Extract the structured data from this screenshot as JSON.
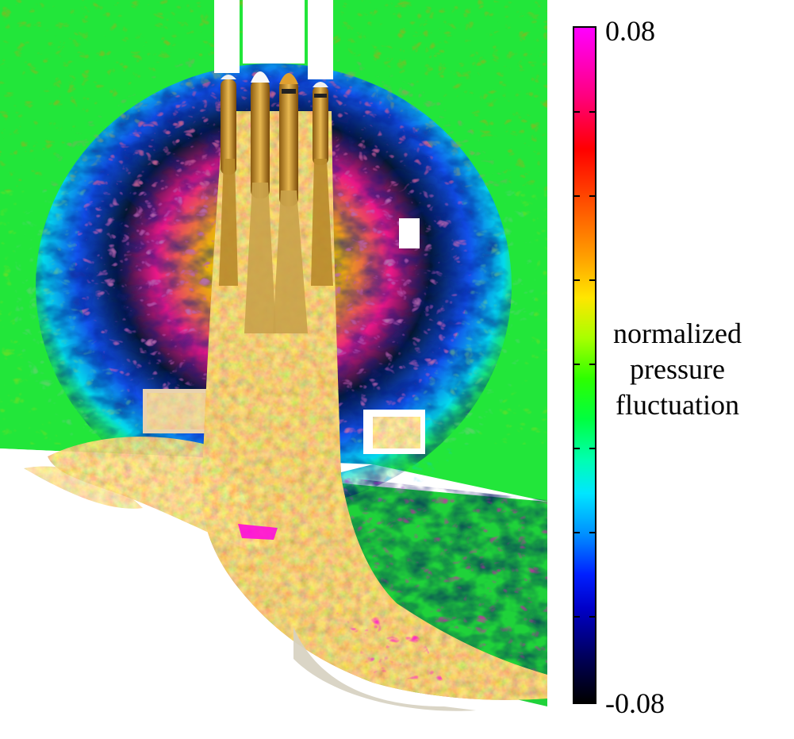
{
  "colorbar": {
    "max_label": "0.08",
    "min_label": "-0.08",
    "title_lines": [
      "normalized",
      "pressure",
      "fluctuation"
    ],
    "range": [
      -0.08,
      0.08
    ],
    "colormap_stops": [
      "#ff00ff",
      "#ff0000",
      "#ffa000",
      "#ffe600",
      "#2dff00",
      "#00ffb0",
      "#00e6ff",
      "#0020ff",
      "#000000"
    ]
  },
  "figure": {
    "background_field_color": "#22e63a",
    "plume_color": "#c8932a",
    "thrust_colors": [
      "#c9a24a",
      "#b8862a"
    ]
  }
}
